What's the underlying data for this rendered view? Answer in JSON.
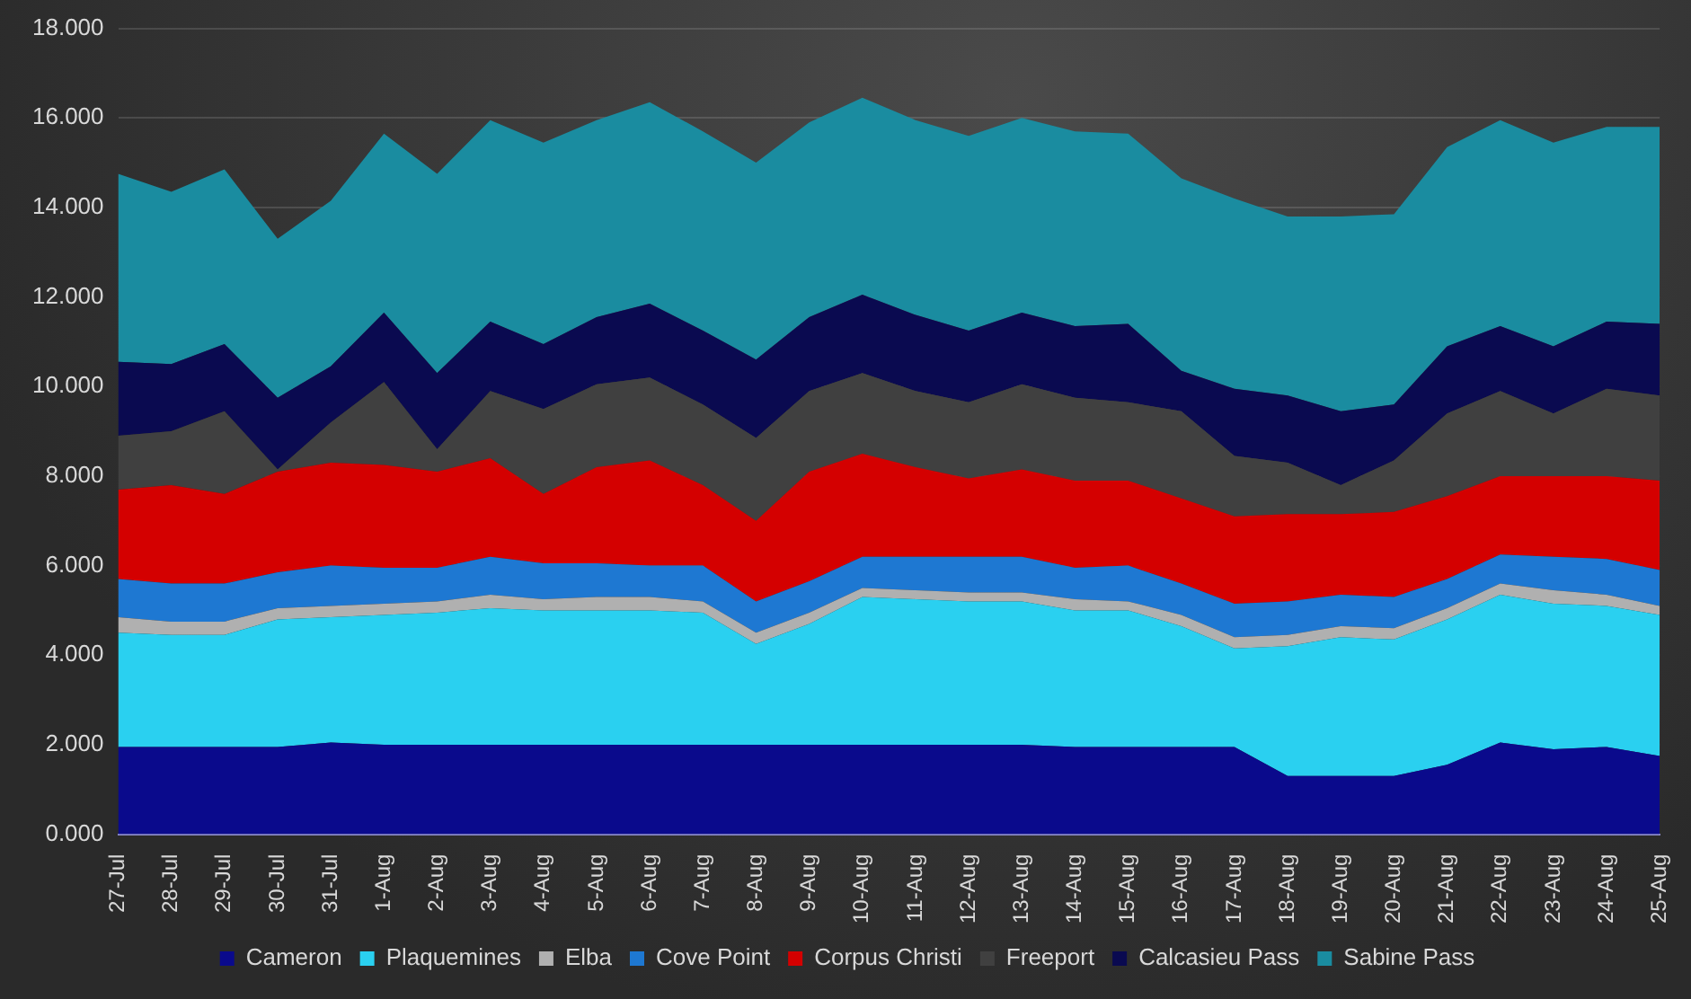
{
  "chart_data": {
    "type": "area",
    "stacked": true,
    "categories": [
      "27-Jul",
      "28-Jul",
      "29-Jul",
      "30-Jul",
      "31-Jul",
      "1-Aug",
      "2-Aug",
      "3-Aug",
      "4-Aug",
      "5-Aug",
      "6-Aug",
      "7-Aug",
      "8-Aug",
      "9-Aug",
      "10-Aug",
      "11-Aug",
      "12-Aug",
      "13-Aug",
      "14-Aug",
      "15-Aug",
      "16-Aug",
      "17-Aug",
      "18-Aug",
      "19-Aug",
      "20-Aug",
      "21-Aug",
      "22-Aug",
      "23-Aug",
      "24-Aug",
      "25-Aug"
    ],
    "series": [
      {
        "name": "Cameron",
        "color": "#0a0a8c",
        "values": [
          1.95,
          1.95,
          1.95,
          1.95,
          2.05,
          2.0,
          2.0,
          2.0,
          2.0,
          2.0,
          2.0,
          2.0,
          2.0,
          2.0,
          2.0,
          2.0,
          2.0,
          2.0,
          1.95,
          1.95,
          1.95,
          1.95,
          1.3,
          1.3,
          1.3,
          1.55,
          2.05,
          1.9,
          1.95,
          1.75
        ]
      },
      {
        "name": "Plaquemines",
        "color": "#2ad0f0",
        "values": [
          2.55,
          2.5,
          2.5,
          2.85,
          2.8,
          2.9,
          2.95,
          3.05,
          3.0,
          3.0,
          3.0,
          2.95,
          2.25,
          2.7,
          3.3,
          3.25,
          3.2,
          3.2,
          3.05,
          3.05,
          2.7,
          2.2,
          2.9,
          3.1,
          3.05,
          3.25,
          3.3,
          3.25,
          3.15,
          3.15
        ]
      },
      {
        "name": "Elba",
        "color": "#b0b0b0",
        "values": [
          0.35,
          0.3,
          0.3,
          0.25,
          0.25,
          0.25,
          0.25,
          0.3,
          0.25,
          0.3,
          0.3,
          0.25,
          0.25,
          0.25,
          0.2,
          0.2,
          0.2,
          0.2,
          0.25,
          0.2,
          0.25,
          0.25,
          0.25,
          0.25,
          0.25,
          0.25,
          0.25,
          0.3,
          0.25,
          0.2
        ]
      },
      {
        "name": "Cove Point",
        "color": "#1e78d2",
        "values": [
          0.85,
          0.85,
          0.85,
          0.8,
          0.9,
          0.8,
          0.75,
          0.85,
          0.8,
          0.75,
          0.7,
          0.8,
          0.7,
          0.7,
          0.7,
          0.75,
          0.8,
          0.8,
          0.7,
          0.8,
          0.7,
          0.75,
          0.75,
          0.7,
          0.7,
          0.65,
          0.65,
          0.75,
          0.8,
          0.8
        ]
      },
      {
        "name": "Corpus Christi",
        "color": "#d40000",
        "values": [
          2.0,
          2.2,
          2.0,
          2.25,
          2.3,
          2.3,
          2.15,
          2.2,
          1.55,
          2.15,
          2.35,
          1.8,
          1.8,
          2.45,
          2.3,
          2.0,
          1.75,
          1.95,
          1.95,
          1.9,
          1.9,
          1.95,
          1.95,
          1.8,
          1.9,
          1.85,
          1.75,
          1.8,
          1.85,
          2.0
        ]
      },
      {
        "name": "Freeport",
        "color": "#404040",
        "values": [
          1.2,
          1.2,
          1.85,
          0.05,
          0.9,
          1.85,
          0.5,
          1.5,
          1.9,
          1.85,
          1.85,
          1.8,
          1.85,
          1.8,
          1.8,
          1.7,
          1.7,
          1.9,
          1.85,
          1.75,
          1.95,
          1.35,
          1.15,
          0.65,
          1.15,
          1.85,
          1.9,
          1.4,
          1.95,
          1.9
        ]
      },
      {
        "name": "Calcasieu Pass",
        "color": "#0a0a50",
        "values": [
          1.65,
          1.5,
          1.5,
          1.6,
          1.25,
          1.55,
          1.7,
          1.55,
          1.45,
          1.5,
          1.65,
          1.65,
          1.75,
          1.65,
          1.75,
          1.7,
          1.6,
          1.6,
          1.6,
          1.75,
          0.9,
          1.5,
          1.5,
          1.65,
          1.25,
          1.5,
          1.45,
          1.5,
          1.5,
          1.6
        ]
      },
      {
        "name": "Sabine Pass",
        "color": "#1a8ca0",
        "values": [
          4.2,
          3.85,
          3.9,
          3.55,
          3.7,
          4.0,
          4.45,
          4.5,
          4.5,
          4.4,
          4.5,
          4.45,
          4.4,
          4.35,
          4.4,
          4.35,
          4.35,
          4.35,
          4.35,
          4.25,
          4.3,
          4.25,
          4.0,
          4.35,
          4.25,
          4.45,
          4.6,
          4.55,
          4.35,
          4.4
        ]
      }
    ],
    "ylim": [
      0,
      18
    ],
    "yticks": [
      {
        "value": 0,
        "label": "0.000"
      },
      {
        "value": 2,
        "label": "2.000"
      },
      {
        "value": 4,
        "label": "4.000"
      },
      {
        "value": 6,
        "label": "6.000"
      },
      {
        "value": 8,
        "label": "8.000"
      },
      {
        "value": 10,
        "label": "10.000"
      },
      {
        "value": 12,
        "label": "12.000"
      },
      {
        "value": 14,
        "label": "14.000"
      },
      {
        "value": 16,
        "label": "16.000"
      },
      {
        "value": 18,
        "label": "18.000"
      }
    ],
    "grid": "y",
    "legend": "bottom"
  }
}
